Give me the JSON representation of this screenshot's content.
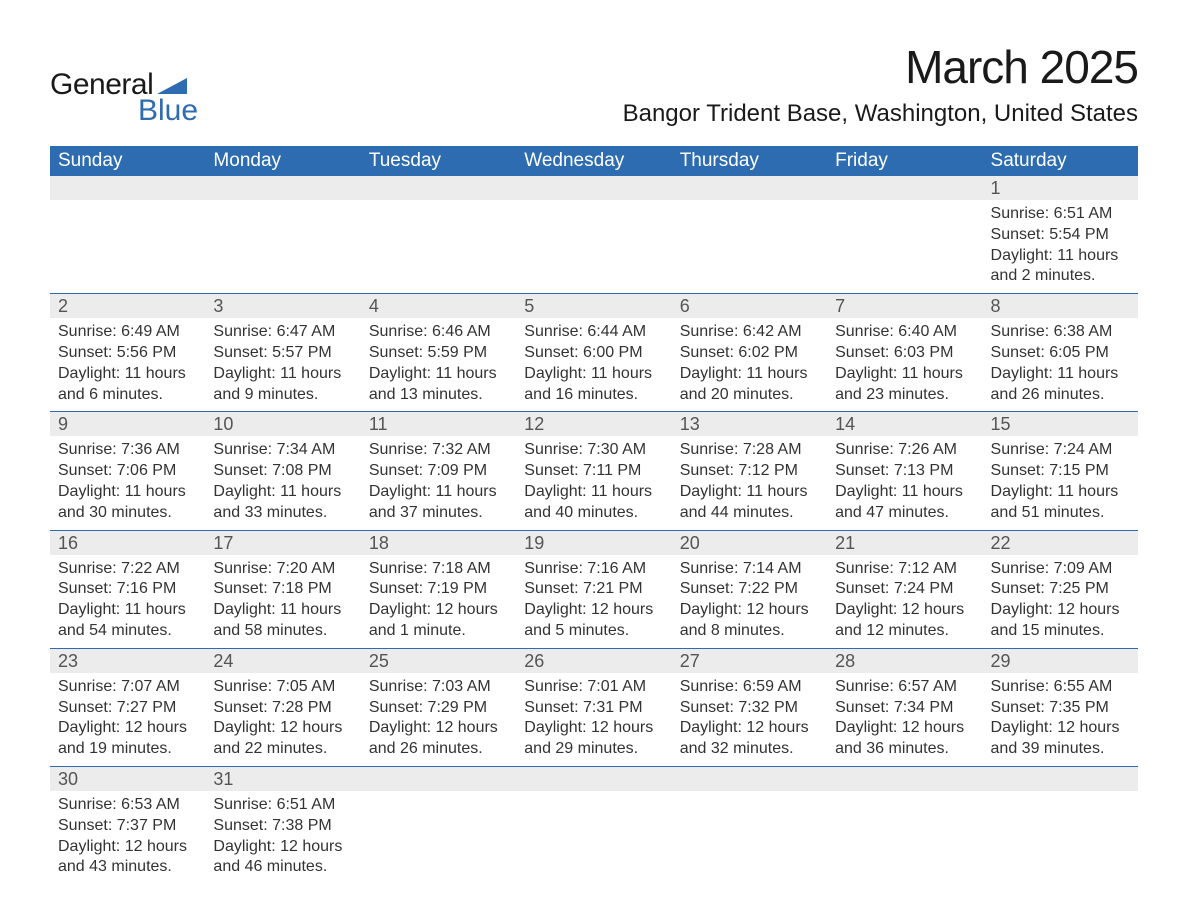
{
  "logo": {
    "line1": "General",
    "line2": "Blue",
    "tri_color": "#2d6cb0"
  },
  "title": "March 2025",
  "location": "Bangor Trident Base, Washington, United States",
  "colors": {
    "header_bg": "#2d6cb0",
    "header_fg": "#ffffff",
    "daynum_bg": "#ececec",
    "daynum_fg": "#555555",
    "body_fg": "#333333",
    "rule": "#2d6cb0"
  },
  "day_headers": [
    "Sunday",
    "Monday",
    "Tuesday",
    "Wednesday",
    "Thursday",
    "Friday",
    "Saturday"
  ],
  "weeks": [
    [
      {
        "n": "",
        "sr": "",
        "ss": "",
        "dl": ""
      },
      {
        "n": "",
        "sr": "",
        "ss": "",
        "dl": ""
      },
      {
        "n": "",
        "sr": "",
        "ss": "",
        "dl": ""
      },
      {
        "n": "",
        "sr": "",
        "ss": "",
        "dl": ""
      },
      {
        "n": "",
        "sr": "",
        "ss": "",
        "dl": ""
      },
      {
        "n": "",
        "sr": "",
        "ss": "",
        "dl": ""
      },
      {
        "n": "1",
        "sr": "Sunrise: 6:51 AM",
        "ss": "Sunset: 5:54 PM",
        "dl": "Daylight: 11 hours and 2 minutes."
      }
    ],
    [
      {
        "n": "2",
        "sr": "Sunrise: 6:49 AM",
        "ss": "Sunset: 5:56 PM",
        "dl": "Daylight: 11 hours and 6 minutes."
      },
      {
        "n": "3",
        "sr": "Sunrise: 6:47 AM",
        "ss": "Sunset: 5:57 PM",
        "dl": "Daylight: 11 hours and 9 minutes."
      },
      {
        "n": "4",
        "sr": "Sunrise: 6:46 AM",
        "ss": "Sunset: 5:59 PM",
        "dl": "Daylight: 11 hours and 13 minutes."
      },
      {
        "n": "5",
        "sr": "Sunrise: 6:44 AM",
        "ss": "Sunset: 6:00 PM",
        "dl": "Daylight: 11 hours and 16 minutes."
      },
      {
        "n": "6",
        "sr": "Sunrise: 6:42 AM",
        "ss": "Sunset: 6:02 PM",
        "dl": "Daylight: 11 hours and 20 minutes."
      },
      {
        "n": "7",
        "sr": "Sunrise: 6:40 AM",
        "ss": "Sunset: 6:03 PM",
        "dl": "Daylight: 11 hours and 23 minutes."
      },
      {
        "n": "8",
        "sr": "Sunrise: 6:38 AM",
        "ss": "Sunset: 6:05 PM",
        "dl": "Daylight: 11 hours and 26 minutes."
      }
    ],
    [
      {
        "n": "9",
        "sr": "Sunrise: 7:36 AM",
        "ss": "Sunset: 7:06 PM",
        "dl": "Daylight: 11 hours and 30 minutes."
      },
      {
        "n": "10",
        "sr": "Sunrise: 7:34 AM",
        "ss": "Sunset: 7:08 PM",
        "dl": "Daylight: 11 hours and 33 minutes."
      },
      {
        "n": "11",
        "sr": "Sunrise: 7:32 AM",
        "ss": "Sunset: 7:09 PM",
        "dl": "Daylight: 11 hours and 37 minutes."
      },
      {
        "n": "12",
        "sr": "Sunrise: 7:30 AM",
        "ss": "Sunset: 7:11 PM",
        "dl": "Daylight: 11 hours and 40 minutes."
      },
      {
        "n": "13",
        "sr": "Sunrise: 7:28 AM",
        "ss": "Sunset: 7:12 PM",
        "dl": "Daylight: 11 hours and 44 minutes."
      },
      {
        "n": "14",
        "sr": "Sunrise: 7:26 AM",
        "ss": "Sunset: 7:13 PM",
        "dl": "Daylight: 11 hours and 47 minutes."
      },
      {
        "n": "15",
        "sr": "Sunrise: 7:24 AM",
        "ss": "Sunset: 7:15 PM",
        "dl": "Daylight: 11 hours and 51 minutes."
      }
    ],
    [
      {
        "n": "16",
        "sr": "Sunrise: 7:22 AM",
        "ss": "Sunset: 7:16 PM",
        "dl": "Daylight: 11 hours and 54 minutes."
      },
      {
        "n": "17",
        "sr": "Sunrise: 7:20 AM",
        "ss": "Sunset: 7:18 PM",
        "dl": "Daylight: 11 hours and 58 minutes."
      },
      {
        "n": "18",
        "sr": "Sunrise: 7:18 AM",
        "ss": "Sunset: 7:19 PM",
        "dl": "Daylight: 12 hours and 1 minute."
      },
      {
        "n": "19",
        "sr": "Sunrise: 7:16 AM",
        "ss": "Sunset: 7:21 PM",
        "dl": "Daylight: 12 hours and 5 minutes."
      },
      {
        "n": "20",
        "sr": "Sunrise: 7:14 AM",
        "ss": "Sunset: 7:22 PM",
        "dl": "Daylight: 12 hours and 8 minutes."
      },
      {
        "n": "21",
        "sr": "Sunrise: 7:12 AM",
        "ss": "Sunset: 7:24 PM",
        "dl": "Daylight: 12 hours and 12 minutes."
      },
      {
        "n": "22",
        "sr": "Sunrise: 7:09 AM",
        "ss": "Sunset: 7:25 PM",
        "dl": "Daylight: 12 hours and 15 minutes."
      }
    ],
    [
      {
        "n": "23",
        "sr": "Sunrise: 7:07 AM",
        "ss": "Sunset: 7:27 PM",
        "dl": "Daylight: 12 hours and 19 minutes."
      },
      {
        "n": "24",
        "sr": "Sunrise: 7:05 AM",
        "ss": "Sunset: 7:28 PM",
        "dl": "Daylight: 12 hours and 22 minutes."
      },
      {
        "n": "25",
        "sr": "Sunrise: 7:03 AM",
        "ss": "Sunset: 7:29 PM",
        "dl": "Daylight: 12 hours and 26 minutes."
      },
      {
        "n": "26",
        "sr": "Sunrise: 7:01 AM",
        "ss": "Sunset: 7:31 PM",
        "dl": "Daylight: 12 hours and 29 minutes."
      },
      {
        "n": "27",
        "sr": "Sunrise: 6:59 AM",
        "ss": "Sunset: 7:32 PM",
        "dl": "Daylight: 12 hours and 32 minutes."
      },
      {
        "n": "28",
        "sr": "Sunrise: 6:57 AM",
        "ss": "Sunset: 7:34 PM",
        "dl": "Daylight: 12 hours and 36 minutes."
      },
      {
        "n": "29",
        "sr": "Sunrise: 6:55 AM",
        "ss": "Sunset: 7:35 PM",
        "dl": "Daylight: 12 hours and 39 minutes."
      }
    ],
    [
      {
        "n": "30",
        "sr": "Sunrise: 6:53 AM",
        "ss": "Sunset: 7:37 PM",
        "dl": "Daylight: 12 hours and 43 minutes."
      },
      {
        "n": "31",
        "sr": "Sunrise: 6:51 AM",
        "ss": "Sunset: 7:38 PM",
        "dl": "Daylight: 12 hours and 46 minutes."
      },
      {
        "n": "",
        "sr": "",
        "ss": "",
        "dl": ""
      },
      {
        "n": "",
        "sr": "",
        "ss": "",
        "dl": ""
      },
      {
        "n": "",
        "sr": "",
        "ss": "",
        "dl": ""
      },
      {
        "n": "",
        "sr": "",
        "ss": "",
        "dl": ""
      },
      {
        "n": "",
        "sr": "",
        "ss": "",
        "dl": ""
      }
    ]
  ]
}
